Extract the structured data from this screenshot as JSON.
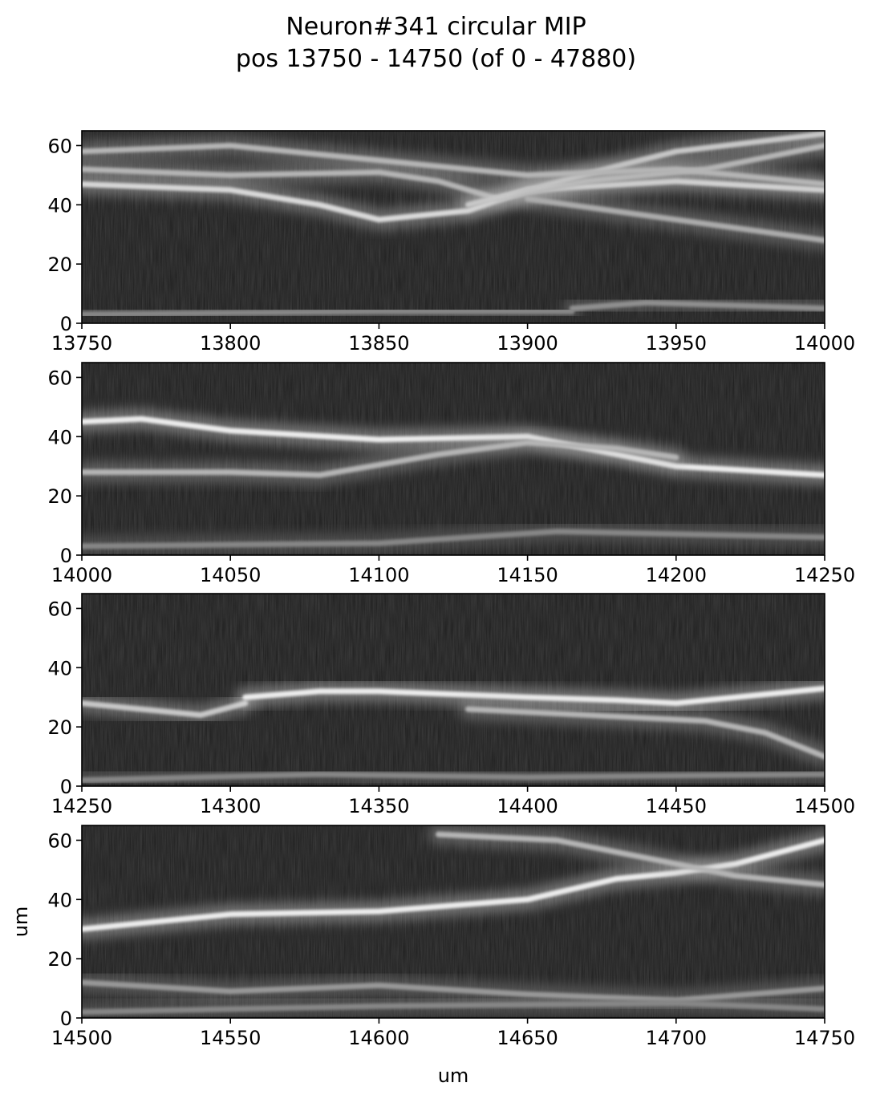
{
  "figure": {
    "title_line1": "Neuron#341 circular MIP",
    "title_line2": "pos 13750 - 14750 (of 0 - 47880)",
    "xlabel": "um",
    "ylabel": "um"
  },
  "chart_data": {
    "type": "heatmap",
    "title": "Neuron#341 circular MIP pos 13750 - 14750 (of 0 - 47880)",
    "colormap": "gray",
    "grid": false,
    "panels": [
      {
        "xlim": [
          13750,
          14000
        ],
        "ylim": [
          0,
          65
        ],
        "xticks": [
          13750,
          13800,
          13850,
          13900,
          13950,
          14000
        ],
        "yticks": [
          0,
          20,
          40,
          60
        ],
        "xlabel": "",
        "ylabel": "",
        "bright_traces": [
          {
            "x": [
              13750,
              13800,
              13830,
              13850,
              13880,
              13900,
              13950,
              14000
            ],
            "y": [
              47,
              45,
              40,
              35,
              38,
              45,
              48,
              45
            ],
            "intensity": 0.8
          },
          {
            "x": [
              13750,
              13800,
              13850,
              13870,
              13890,
              13920,
              13960,
              14000
            ],
            "y": [
              52,
              50,
              51,
              48,
              42,
              48,
              52,
              60
            ],
            "intensity": 0.6
          },
          {
            "x": [
              13880,
              13900,
              13930,
              13950,
              14000
            ],
            "y": [
              40,
              45,
              53,
              58,
              64
            ],
            "intensity": 0.7
          },
          {
            "x": [
              13750,
              13800,
              13850,
              13900,
              13950,
              14000
            ],
            "y": [
              58,
              60,
              55,
              50,
              52,
              47
            ],
            "intensity": 0.6
          },
          {
            "x": [
              13900,
              13950,
              14000
            ],
            "y": [
              42,
              35,
              28
            ],
            "intensity": 0.55
          },
          {
            "x": [
              13915,
              13940,
              13970,
              14000
            ],
            "y": [
              5,
              7,
              6,
              5
            ],
            "intensity": 0.4
          },
          {
            "x": [
              13750,
              13850,
              13915
            ],
            "y": [
              3,
              4,
              4
            ],
            "intensity": 0.35
          }
        ]
      },
      {
        "xlim": [
          14000,
          14250
        ],
        "ylim": [
          0,
          65
        ],
        "xticks": [
          14000,
          14050,
          14100,
          14150,
          14200,
          14250
        ],
        "yticks": [
          0,
          20,
          40,
          60
        ],
        "xlabel": "",
        "ylabel": "",
        "bright_traces": [
          {
            "x": [
              14000,
              14020,
              14050,
              14100,
              14150,
              14200,
              14250
            ],
            "y": [
              45,
              46,
              42,
              39,
              40,
              30,
              27
            ],
            "intensity": 0.9
          },
          {
            "x": [
              14000,
              14050,
              14080,
              14120,
              14150,
              14180,
              14200
            ],
            "y": [
              28,
              28,
              27,
              34,
              38,
              36,
              33
            ],
            "intensity": 0.6
          },
          {
            "x": [
              14000,
              14100,
              14160,
              14250
            ],
            "y": [
              3,
              4,
              8,
              6
            ],
            "intensity": 0.35
          }
        ]
      },
      {
        "xlim": [
          14250,
          14500
        ],
        "ylim": [
          0,
          65
        ],
        "xticks": [
          14250,
          14300,
          14350,
          14400,
          14450,
          14500
        ],
        "yticks": [
          0,
          20,
          40,
          60
        ],
        "xlabel": "",
        "ylabel": "",
        "bright_traces": [
          {
            "x": [
              14250,
              14270,
              14290,
              14305
            ],
            "y": [
              28,
              26,
              24,
              28
            ],
            "intensity": 0.7
          },
          {
            "x": [
              14305,
              14330,
              14350,
              14400,
              14430,
              14450,
              14500
            ],
            "y": [
              30,
              32,
              32,
              30,
              29,
              28,
              33
            ],
            "intensity": 0.9
          },
          {
            "x": [
              14380,
              14420,
              14460,
              14480,
              14500
            ],
            "y": [
              26,
              24,
              22,
              18,
              10
            ],
            "intensity": 0.6
          },
          {
            "x": [
              14250,
              14330,
              14400,
              14500
            ],
            "y": [
              2,
              4,
              3,
              4
            ],
            "intensity": 0.35
          }
        ]
      },
      {
        "xlim": [
          14500,
          14750
        ],
        "ylim": [
          0,
          65
        ],
        "xticks": [
          14500,
          14550,
          14600,
          14650,
          14700,
          14750
        ],
        "yticks": [
          0,
          20,
          40,
          60
        ],
        "xlabel": "um",
        "ylabel": "um",
        "bright_traces": [
          {
            "x": [
              14500,
              14550,
              14600,
              14650,
              14680,
              14700,
              14720,
              14750
            ],
            "y": [
              30,
              35,
              36,
              40,
              47,
              49,
              52,
              60
            ],
            "intensity": 0.9
          },
          {
            "x": [
              14620,
              14660,
              14690,
              14720,
              14750
            ],
            "y": [
              62,
              60,
              54,
              48,
              45
            ],
            "intensity": 0.6
          },
          {
            "x": [
              14500,
              14550,
              14600,
              14650,
              14700,
              14750
            ],
            "y": [
              12,
              9,
              11,
              8,
              6,
              10
            ],
            "intensity": 0.45
          },
          {
            "x": [
              14500,
              14600,
              14700,
              14750
            ],
            "y": [
              2,
              4,
              5,
              3
            ],
            "intensity": 0.35
          }
        ]
      }
    ]
  }
}
